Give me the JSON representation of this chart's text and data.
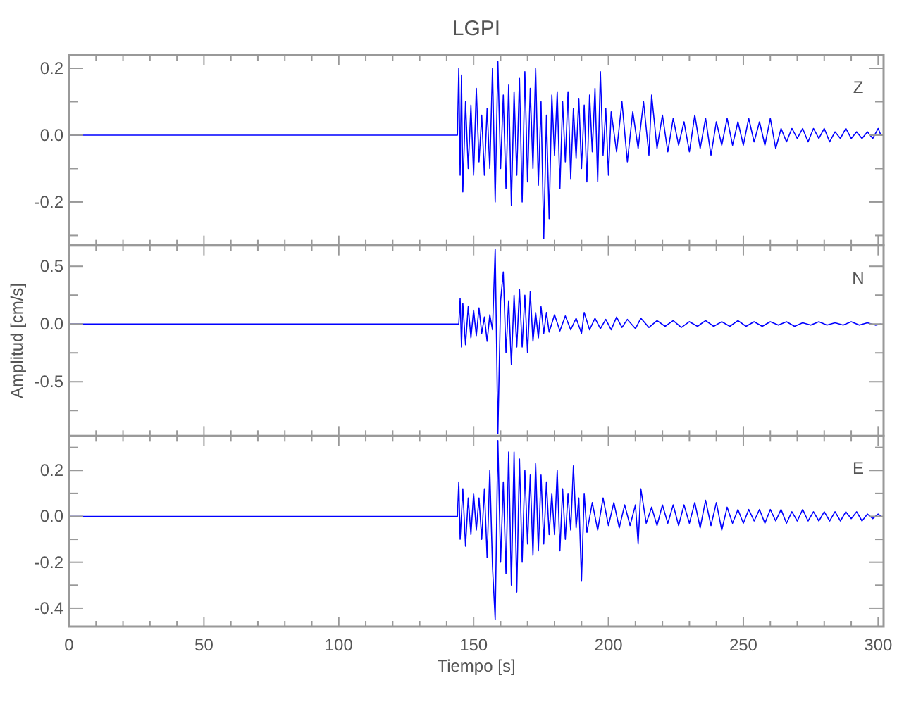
{
  "chart_data": [
    {
      "type": "line",
      "title": "LGPI",
      "annotations": [
        "Z"
      ],
      "tick_labels": "y",
      "xlim": [
        0,
        302
      ],
      "ylim": [
        -0.33,
        0.24
      ],
      "xticks": [
        0,
        {
          "value": 10,
          "label": null
        },
        {
          "value": 20,
          "label": null
        },
        {
          "value": 30,
          "label": null
        },
        {
          "value": 40,
          "label": null
        },
        50,
        {
          "value": 60,
          "label": null
        },
        {
          "value": 70,
          "label": null
        },
        {
          "value": 80,
          "label": null
        },
        {
          "value": 90,
          "label": null
        },
        100,
        {
          "value": 110,
          "label": null
        },
        {
          "value": 120,
          "label": null
        },
        {
          "value": 130,
          "label": null
        },
        {
          "value": 140,
          "label": null
        },
        150,
        {
          "value": 160,
          "label": null
        },
        {
          "value": 170,
          "label": null
        },
        {
          "value": 180,
          "label": null
        },
        {
          "value": 190,
          "label": null
        },
        200,
        {
          "value": 210,
          "label": null
        },
        {
          "value": 220,
          "label": null
        },
        {
          "value": 230,
          "label": null
        },
        {
          "value": 240,
          "label": null
        },
        250,
        {
          "value": 260,
          "label": null
        },
        {
          "value": 270,
          "label": null
        },
        {
          "value": 280,
          "label": null
        },
        {
          "value": 290,
          "label": null
        },
        300
      ],
      "yticks": [
        {
          "value": -0.3,
          "label": null
        },
        {
          "value": -0.2,
          "label": "-0.2"
        },
        {
          "value": -0.1,
          "label": null
        },
        {
          "value": 0,
          "label": "0.0"
        },
        {
          "value": 0.1,
          "label": null
        },
        {
          "value": 0.2,
          "label": "0.2"
        }
      ],
      "series": [
        {
          "color": "#0000ff",
          "x": [
            0,
            144,
            144.5,
            145,
            145.5,
            146,
            147,
            148,
            149,
            150,
            151,
            152,
            153,
            154,
            155,
            156,
            157,
            158,
            159,
            160,
            161,
            162,
            163,
            164,
            165,
            166,
            167,
            168,
            169,
            170,
            171,
            172,
            173,
            174,
            175,
            176,
            177,
            178,
            179,
            180,
            181,
            182,
            183,
            184,
            185,
            186,
            187,
            188,
            189,
            190,
            191,
            192,
            193,
            194,
            195,
            196,
            197,
            198,
            199,
            200,
            201,
            203,
            205,
            207,
            209,
            211,
            213,
            215,
            216,
            218,
            220,
            222,
            224,
            226,
            228,
            230,
            232,
            234,
            236,
            238,
            240,
            242,
            244,
            246,
            248,
            250,
            252,
            254,
            256,
            258,
            260,
            262,
            264,
            266,
            268,
            270,
            272,
            274,
            276,
            278,
            280,
            282,
            284,
            286,
            288,
            290,
            292,
            294,
            296,
            298,
            300,
            301
          ],
          "values": [
            0,
            0,
            0.2,
            -0.12,
            0.18,
            -0.17,
            0.1,
            -0.1,
            0.09,
            -0.12,
            0.14,
            -0.08,
            0.06,
            -0.12,
            0.08,
            -0.1,
            0.2,
            -0.2,
            0.22,
            -0.1,
            0.12,
            -0.16,
            0.15,
            -0.21,
            0.13,
            -0.12,
            0.17,
            -0.2,
            0.19,
            -0.14,
            0.14,
            -0.1,
            0.2,
            -0.15,
            0.1,
            -0.31,
            0.06,
            -0.25,
            0.12,
            -0.06,
            0.13,
            -0.16,
            0.1,
            -0.08,
            0.13,
            -0.13,
            0.08,
            -0.07,
            0.11,
            -0.1,
            0.09,
            -0.14,
            0.12,
            -0.05,
            0.14,
            -0.14,
            0.19,
            -0.06,
            0.08,
            -0.12,
            0.07,
            -0.05,
            0.1,
            -0.08,
            0.07,
            -0.04,
            0.1,
            -0.06,
            0.12,
            -0.04,
            0.06,
            -0.05,
            0.05,
            -0.03,
            0.04,
            -0.05,
            0.06,
            -0.04,
            0.05,
            -0.06,
            0.04,
            -0.03,
            0.05,
            -0.03,
            0.04,
            -0.03,
            0.05,
            -0.02,
            0.04,
            -0.03,
            0.05,
            -0.04,
            0.02,
            -0.02,
            0.02,
            -0.01,
            0.02,
            -0.02,
            0.02,
            -0.01,
            0.02,
            -0.02,
            0.01,
            -0.01,
            0.02,
            -0.01,
            0.01,
            -0.01,
            0.01,
            -0.01,
            0.02,
            0
          ]
        }
      ]
    },
    {
      "type": "line",
      "ylabel": "Amplitud [cm/s]",
      "annotations": [
        "N"
      ],
      "tick_labels": "y",
      "xlim": [
        0,
        302
      ],
      "ylim": [
        -0.97,
        0.68
      ],
      "xticks": [
        0,
        {
          "value": 10,
          "label": null
        },
        {
          "value": 20,
          "label": null
        },
        {
          "value": 30,
          "label": null
        },
        {
          "value": 40,
          "label": null
        },
        50,
        {
          "value": 60,
          "label": null
        },
        {
          "value": 70,
          "label": null
        },
        {
          "value": 80,
          "label": null
        },
        {
          "value": 90,
          "label": null
        },
        100,
        {
          "value": 110,
          "label": null
        },
        {
          "value": 120,
          "label": null
        },
        {
          "value": 130,
          "label": null
        },
        {
          "value": 140,
          "label": null
        },
        150,
        {
          "value": 160,
          "label": null
        },
        {
          "value": 170,
          "label": null
        },
        {
          "value": 180,
          "label": null
        },
        {
          "value": 190,
          "label": null
        },
        200,
        {
          "value": 210,
          "label": null
        },
        {
          "value": 220,
          "label": null
        },
        {
          "value": 230,
          "label": null
        },
        {
          "value": 240,
          "label": null
        },
        250,
        {
          "value": 260,
          "label": null
        },
        {
          "value": 270,
          "label": null
        },
        {
          "value": 280,
          "label": null
        },
        {
          "value": 290,
          "label": null
        },
        300
      ],
      "yticks": [
        {
          "value": -0.75,
          "label": null
        },
        {
          "value": -0.5,
          "label": "-0.5"
        },
        {
          "value": -0.25,
          "label": null
        },
        {
          "value": 0,
          "label": "0.0"
        },
        {
          "value": 0.25,
          "label": null
        },
        {
          "value": 0.5,
          "label": "0.5"
        }
      ],
      "series": [
        {
          "color": "#0000ff",
          "x": [
            0,
            144.5,
            145,
            145.5,
            146,
            147,
            148,
            149,
            150,
            151,
            152,
            153,
            154,
            155,
            156,
            157,
            158,
            159,
            160,
            161,
            162,
            163,
            164,
            165,
            166,
            167,
            168,
            169,
            170,
            171,
            172,
            173,
            174,
            175,
            176,
            177,
            178,
            180,
            182,
            184,
            186,
            188,
            190,
            191,
            193,
            195,
            197,
            199,
            201,
            203,
            205,
            207,
            210,
            212,
            215,
            218,
            221,
            224,
            227,
            230,
            233,
            236,
            239,
            242,
            245,
            248,
            251,
            254,
            257,
            260,
            263,
            266,
            269,
            272,
            275,
            278,
            281,
            284,
            287,
            290,
            293,
            296,
            299,
            301
          ],
          "values": [
            0,
            0,
            0.22,
            -0.2,
            0.18,
            -0.18,
            0.15,
            -0.12,
            0.12,
            -0.1,
            0.14,
            -0.08,
            0.06,
            -0.15,
            0.08,
            -0.05,
            0.65,
            -0.95,
            0.2,
            0.45,
            -0.25,
            0.2,
            -0.35,
            0.25,
            -0.2,
            0.3,
            -0.2,
            0.25,
            -0.25,
            0.28,
            -0.15,
            0.1,
            -0.12,
            0.15,
            -0.08,
            0.1,
            -0.07,
            0.08,
            -0.06,
            0.07,
            -0.05,
            0.05,
            -0.08,
            0.1,
            -0.05,
            0.05,
            -0.04,
            0.04,
            -0.05,
            0.06,
            -0.03,
            0.04,
            -0.04,
            0.05,
            -0.03,
            0.03,
            -0.02,
            0.03,
            -0.03,
            0.02,
            -0.02,
            0.03,
            -0.02,
            0.02,
            -0.02,
            0.03,
            -0.02,
            0.02,
            -0.02,
            0.02,
            -0.01,
            0.02,
            -0.02,
            0.01,
            -0.01,
            0.02,
            -0.01,
            0.01,
            -0.01,
            0.02,
            -0.01,
            0.01,
            -0.01,
            0
          ]
        }
      ]
    },
    {
      "type": "line",
      "xlabel": "Tiempo [s]",
      "annotations": [
        "E"
      ],
      "xlim": [
        0,
        302
      ],
      "ylim": [
        -0.48,
        0.35
      ],
      "xticks": [
        0,
        {
          "value": 10,
          "label": null
        },
        {
          "value": 20,
          "label": null
        },
        {
          "value": 30,
          "label": null
        },
        {
          "value": 40,
          "label": null
        },
        50,
        {
          "value": 60,
          "label": null
        },
        {
          "value": 70,
          "label": null
        },
        {
          "value": 80,
          "label": null
        },
        {
          "value": 90,
          "label": null
        },
        100,
        {
          "value": 110,
          "label": null
        },
        {
          "value": 120,
          "label": null
        },
        {
          "value": 130,
          "label": null
        },
        {
          "value": 140,
          "label": null
        },
        150,
        {
          "value": 160,
          "label": null
        },
        {
          "value": 170,
          "label": null
        },
        {
          "value": 180,
          "label": null
        },
        {
          "value": 190,
          "label": null
        },
        200,
        {
          "value": 210,
          "label": null
        },
        {
          "value": 220,
          "label": null
        },
        {
          "value": 230,
          "label": null
        },
        {
          "value": 240,
          "label": null
        },
        250,
        {
          "value": 260,
          "label": null
        },
        {
          "value": 270,
          "label": null
        },
        {
          "value": 280,
          "label": null
        },
        {
          "value": 290,
          "label": null
        },
        300
      ],
      "yticks": [
        {
          "value": -0.4,
          "label": "-0.4"
        },
        {
          "value": -0.3,
          "label": null
        },
        {
          "value": -0.2,
          "label": "-0.2"
        },
        {
          "value": -0.1,
          "label": null
        },
        {
          "value": 0,
          "label": "0.0"
        },
        {
          "value": 0.1,
          "label": null
        },
        {
          "value": 0.2,
          "label": "0.2"
        },
        {
          "value": 0.3,
          "label": null
        }
      ],
      "series": [
        {
          "color": "#0000ff",
          "x": [
            0,
            144,
            144.5,
            145,
            146,
            147,
            148,
            149,
            150,
            151,
            152,
            153,
            154,
            155,
            156,
            157,
            158,
            159,
            160,
            161,
            162,
            163,
            164,
            165,
            166,
            167,
            168,
            169,
            170,
            171,
            172,
            173,
            174,
            175,
            176,
            177,
            178,
            179,
            180,
            181,
            182,
            183,
            184,
            185,
            186,
            187,
            188,
            189,
            190,
            191,
            192,
            194,
            196,
            198,
            200,
            202,
            204,
            206,
            208,
            210,
            211,
            212,
            214,
            216,
            218,
            220,
            222,
            224,
            226,
            228,
            230,
            232,
            234,
            236,
            238,
            240,
            242,
            244,
            246,
            248,
            250,
            252,
            254,
            256,
            258,
            260,
            262,
            264,
            266,
            268,
            270,
            272,
            274,
            276,
            278,
            280,
            282,
            284,
            286,
            288,
            290,
            292,
            294,
            296,
            298,
            300,
            301
          ],
          "values": [
            0,
            0,
            0.15,
            -0.1,
            0.12,
            -0.13,
            0.08,
            -0.08,
            0.1,
            -0.06,
            0.08,
            -0.1,
            0.12,
            -0.18,
            0.2,
            -0.22,
            -0.45,
            0.33,
            -0.2,
            0.15,
            -0.25,
            0.28,
            -0.3,
            0.28,
            -0.33,
            0.25,
            -0.2,
            0.2,
            -0.12,
            0.18,
            -0.17,
            0.23,
            -0.15,
            0.18,
            -0.12,
            0.15,
            -0.08,
            0.1,
            -0.08,
            0.2,
            -0.15,
            0.12,
            -0.1,
            0.1,
            -0.06,
            0.22,
            -0.05,
            0.08,
            -0.28,
            0.1,
            -0.07,
            0.06,
            -0.06,
            0.08,
            -0.04,
            0.06,
            -0.05,
            0.05,
            -0.04,
            0.05,
            -0.12,
            0.12,
            -0.03,
            0.04,
            -0.04,
            0.05,
            -0.03,
            0.05,
            -0.04,
            0.05,
            -0.03,
            0.06,
            -0.05,
            0.07,
            -0.04,
            0.06,
            -0.06,
            0.04,
            -0.03,
            0.03,
            -0.03,
            0.03,
            -0.02,
            0.03,
            -0.03,
            0.03,
            -0.02,
            0.03,
            -0.03,
            0.02,
            -0.02,
            0.03,
            -0.02,
            0.02,
            -0.02,
            0.02,
            -0.02,
            0.02,
            -0.02,
            0.02,
            -0.01,
            0.02,
            -0.02,
            0.01,
            -0.01,
            0.01,
            0
          ]
        }
      ]
    }
  ]
}
